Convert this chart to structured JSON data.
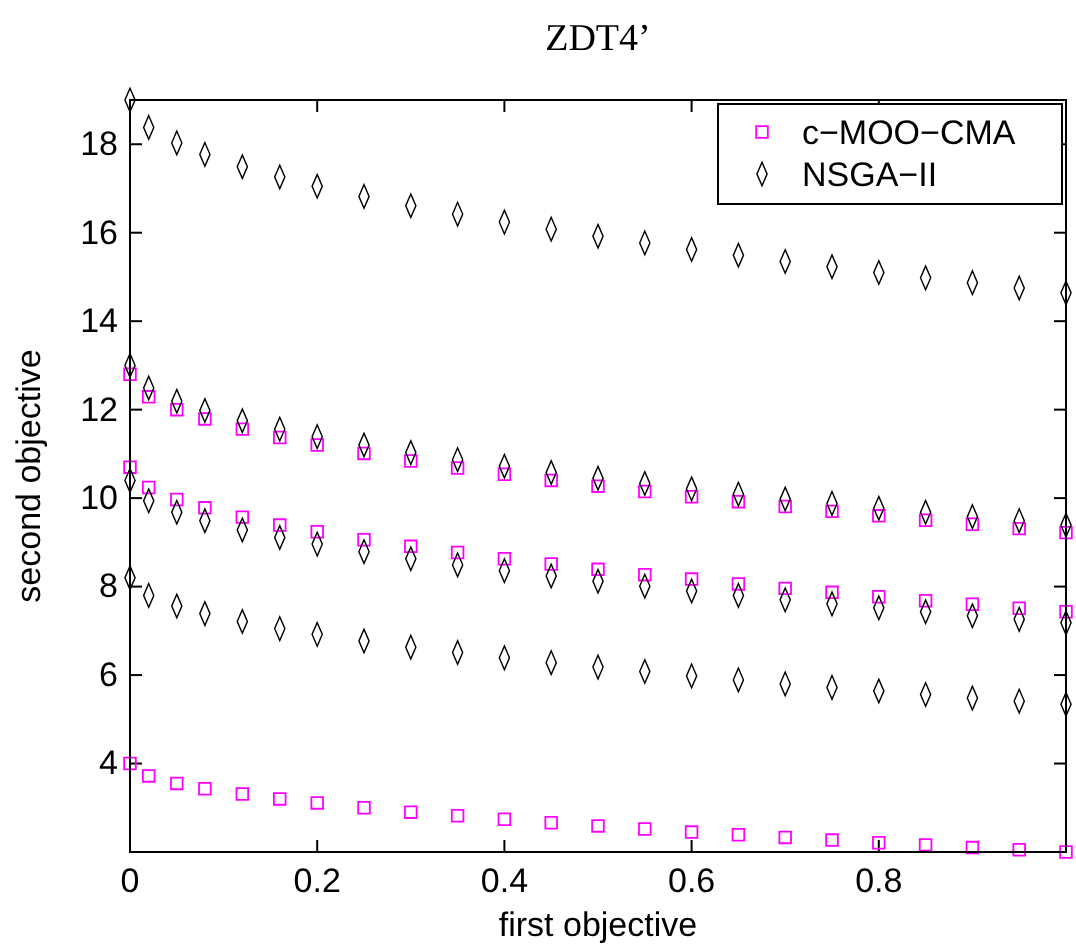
{
  "chart_data": {
    "type": "scatter",
    "title": "ZDT4’",
    "xlabel": "first objective",
    "ylabel": "second objective",
    "xlim": [
      0,
      1
    ],
    "ylim": [
      2,
      19
    ],
    "xticks": [
      0,
      0.2,
      0.4,
      0.6,
      0.8
    ],
    "yticks": [
      4,
      6,
      8,
      10,
      12,
      14,
      16,
      18
    ],
    "grid": false,
    "legend": "top right",
    "series": [
      {
        "name": "c−MOO−CMA",
        "color": "#ff00ff",
        "marker": "square",
        "x": [
          0,
          0.02,
          0.05,
          0.08,
          0.12,
          0.16,
          0.2,
          0.25,
          0.3,
          0.35,
          0.4,
          0.45,
          0.5,
          0.55,
          0.6,
          0.65,
          0.7,
          0.75,
          0.8,
          0.85,
          0.9,
          0.95,
          1,
          0,
          0.02,
          0.05,
          0.08,
          0.12,
          0.16,
          0.2,
          0.25,
          0.3,
          0.35,
          0.4,
          0.45,
          0.5,
          0.55,
          0.6,
          0.65,
          0.7,
          0.75,
          0.8,
          0.85,
          0.9,
          0.95,
          1,
          0,
          0.02,
          0.05,
          0.08,
          0.12,
          0.16,
          0.2,
          0.25,
          0.3,
          0.35,
          0.4,
          0.45,
          0.5,
          0.55,
          0.6,
          0.65,
          0.7,
          0.75,
          0.8,
          0.85,
          0.9,
          0.95,
          1
        ],
        "values": [
          4,
          3.72,
          3.55,
          3.43,
          3.31,
          3.2,
          3.11,
          3.0,
          2.9,
          2.82,
          2.74,
          2.66,
          2.59,
          2.52,
          2.45,
          2.39,
          2.33,
          2.27,
          2.21,
          2.16,
          2.1,
          2.05,
          2.0,
          10.7,
          10.24,
          9.97,
          9.78,
          9.57,
          9.39,
          9.24,
          9.06,
          8.91,
          8.77,
          8.63,
          8.51,
          8.39,
          8.27,
          8.17,
          8.06,
          7.96,
          7.87,
          7.77,
          7.68,
          7.6,
          7.51,
          7.43,
          12.8,
          12.29,
          12.0,
          11.79,
          11.56,
          11.37,
          11.2,
          11.01,
          10.84,
          10.68,
          10.54,
          10.4,
          10.27,
          10.15,
          10.03,
          9.92,
          9.81,
          9.7,
          9.6,
          9.5,
          9.41,
          9.31,
          9.22
        ]
      },
      {
        "name": "NSGA−II",
        "color": "#000000",
        "marker": "diamond",
        "x": [
          0,
          0.02,
          0.05,
          0.08,
          0.12,
          0.16,
          0.2,
          0.25,
          0.3,
          0.35,
          0.4,
          0.45,
          0.5,
          0.55,
          0.6,
          0.65,
          0.7,
          0.75,
          0.8,
          0.85,
          0.9,
          0.95,
          1,
          0,
          0.02,
          0.05,
          0.08,
          0.12,
          0.16,
          0.2,
          0.25,
          0.3,
          0.35,
          0.4,
          0.45,
          0.5,
          0.55,
          0.6,
          0.65,
          0.7,
          0.75,
          0.8,
          0.85,
          0.9,
          0.95,
          1,
          0,
          0.02,
          0.05,
          0.08,
          0.12,
          0.16,
          0.2,
          0.25,
          0.3,
          0.35,
          0.4,
          0.45,
          0.5,
          0.55,
          0.6,
          0.65,
          0.7,
          0.75,
          0.8,
          0.85,
          0.9,
          0.95,
          1,
          0,
          0.02,
          0.05,
          0.08,
          0.12,
          0.16,
          0.2,
          0.25,
          0.3,
          0.35,
          0.4,
          0.45,
          0.5,
          0.55,
          0.6,
          0.65,
          0.7,
          0.75,
          0.8,
          0.85,
          0.9,
          0.95,
          1
        ],
        "values": [
          8.2,
          7.8,
          7.56,
          7.39,
          7.21,
          7.05,
          6.92,
          6.77,
          6.63,
          6.51,
          6.39,
          6.28,
          6.18,
          6.08,
          5.98,
          5.89,
          5.8,
          5.72,
          5.64,
          5.56,
          5.48,
          5.41,
          5.34,
          10.4,
          9.94,
          9.68,
          9.49,
          9.28,
          9.11,
          8.96,
          8.79,
          8.63,
          8.49,
          8.36,
          8.24,
          8.12,
          8.01,
          7.9,
          7.8,
          7.7,
          7.61,
          7.52,
          7.43,
          7.34,
          7.26,
          7.18,
          13,
          12.49,
          12.19,
          11.98,
          11.75,
          11.56,
          11.39,
          11.2,
          11.03,
          10.87,
          10.72,
          10.58,
          10.45,
          10.33,
          10.21,
          10.09,
          9.98,
          9.88,
          9.77,
          9.68,
          9.58,
          9.49,
          9.39,
          19,
          18.38,
          18.03,
          17.77,
          17.49,
          17.26,
          17.05,
          16.82,
          16.61,
          16.42,
          16.24,
          16.08,
          15.92,
          15.77,
          15.62,
          15.49,
          15.35,
          15.23,
          15.1,
          14.98,
          14.87,
          14.75,
          14.64
        ]
      }
    ]
  }
}
